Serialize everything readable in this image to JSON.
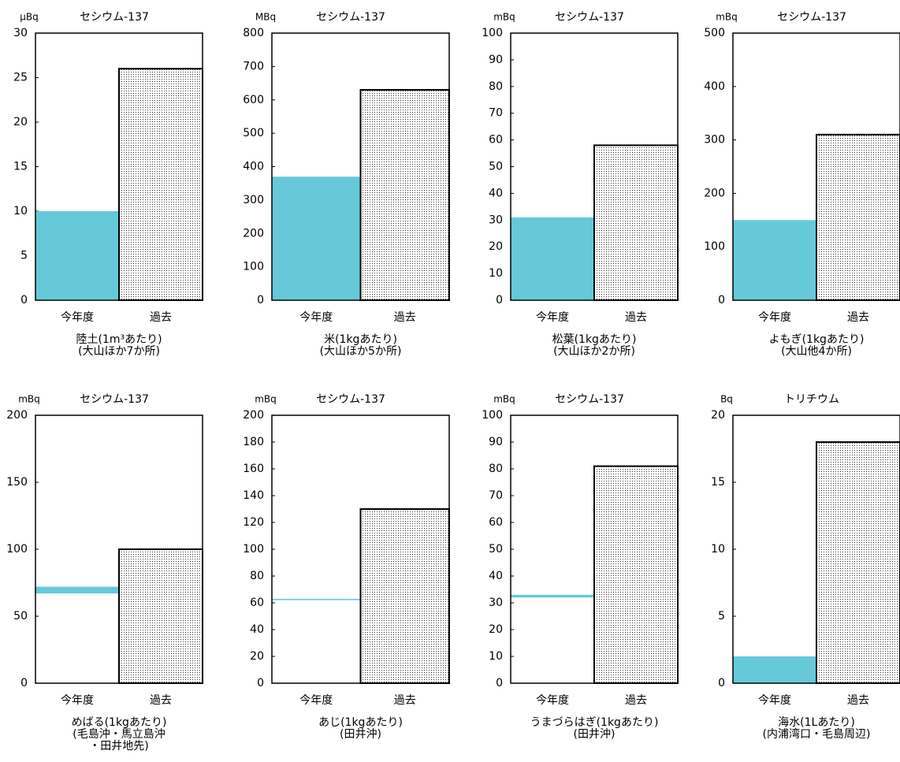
{
  "chart_data": [
    {
      "type": "bar",
      "unit": "μBq",
      "title": "セシウム-137",
      "categories": [
        "今年度",
        "過去"
      ],
      "values": [
        10,
        26
      ],
      "min_values": [
        null,
        null
      ],
      "colors": [
        "#66c9d9",
        "dots"
      ],
      "ylim": [
        0,
        30
      ],
      "yticks": [
        0,
        5,
        10,
        15,
        20,
        25,
        30
      ],
      "caption": [
        "陸土(1m³あたり)",
        "(大山ほか7か所)"
      ]
    },
    {
      "type": "bar",
      "unit": "MBq",
      "title": "セシウム-137",
      "categories": [
        "今年度",
        "過去"
      ],
      "values": [
        370,
        630
      ],
      "min_values": [
        null,
        null
      ],
      "colors": [
        "#66c9d9",
        "dots"
      ],
      "ylim": [
        0,
        800
      ],
      "yticks": [
        0,
        100,
        200,
        300,
        400,
        500,
        600,
        700,
        800
      ],
      "caption": [
        "米(1kgあたり)",
        "(大山ほか5か所)"
      ]
    },
    {
      "type": "bar",
      "unit": "mBq",
      "title": "セシウム-137",
      "categories": [
        "今年度",
        "過去"
      ],
      "values": [
        31,
        58
      ],
      "min_values": [
        null,
        null
      ],
      "colors": [
        "#66c9d9",
        "dots"
      ],
      "ylim": [
        0,
        100
      ],
      "yticks": [
        0,
        10,
        20,
        30,
        40,
        50,
        60,
        70,
        80,
        90,
        100
      ],
      "caption": [
        "松葉(1kgあたり)",
        "(大山ほか2か所)"
      ]
    },
    {
      "type": "bar",
      "unit": "mBq",
      "title": "セシウム-137",
      "categories": [
        "今年度",
        "過去"
      ],
      "values": [
        150,
        310
      ],
      "min_values": [
        null,
        null
      ],
      "colors": [
        "#66c9d9",
        "dots"
      ],
      "ylim": [
        0,
        500
      ],
      "yticks": [
        0,
        100,
        200,
        300,
        400,
        500
      ],
      "caption": [
        "よもぎ(1kgあたり)",
        "(大山他4か所)"
      ]
    },
    {
      "type": "bar",
      "unit": "mBq",
      "title": "セシウム-137",
      "categories": [
        "今年度",
        "過去"
      ],
      "values": [
        72,
        100
      ],
      "min_values": [
        67,
        null
      ],
      "colors": [
        "#66c9d9",
        "dots"
      ],
      "ylim": [
        0,
        200
      ],
      "yticks": [
        0,
        50,
        100,
        150,
        200
      ],
      "caption": [
        "めばる(1kgあたり)",
        "(毛島沖・馬立島沖",
        "・田井地先)"
      ]
    },
    {
      "type": "bar",
      "unit": "mBq",
      "title": "セシウム-137",
      "categories": [
        "今年度",
        "過去"
      ],
      "values": [
        63,
        130
      ],
      "min_values": [
        62,
        null
      ],
      "colors": [
        "#66c9d9",
        "dots"
      ],
      "ylim": [
        0,
        200
      ],
      "yticks": [
        0,
        20,
        40,
        60,
        80,
        100,
        120,
        140,
        160,
        180,
        200
      ],
      "caption": [
        "あじ(1kgあたり)",
        "(田井沖)"
      ]
    },
    {
      "type": "bar",
      "unit": "mBq",
      "title": "セシウム-137",
      "categories": [
        "今年度",
        "過去"
      ],
      "values": [
        33,
        81
      ],
      "min_values": [
        32,
        null
      ],
      "colors": [
        "#66c9d9",
        "dots"
      ],
      "ylim": [
        0,
        100
      ],
      "yticks": [
        0,
        10,
        20,
        30,
        40,
        50,
        60,
        70,
        80,
        90,
        100
      ],
      "caption": [
        "うまづらはぎ(1kgあたり)",
        "(田井沖)"
      ]
    },
    {
      "type": "bar",
      "unit": "Bq",
      "title": "トリチウム",
      "categories": [
        "今年度",
        "過去"
      ],
      "values": [
        2,
        18
      ],
      "min_values": [
        null,
        null
      ],
      "colors": [
        "#66c9d9",
        "dots"
      ],
      "ylim": [
        0,
        20
      ],
      "yticks": [
        0,
        5,
        10,
        15,
        20
      ],
      "caption": [
        "海水(1Lあたり)",
        "(内浦湾口・毛島周辺)"
      ]
    }
  ]
}
